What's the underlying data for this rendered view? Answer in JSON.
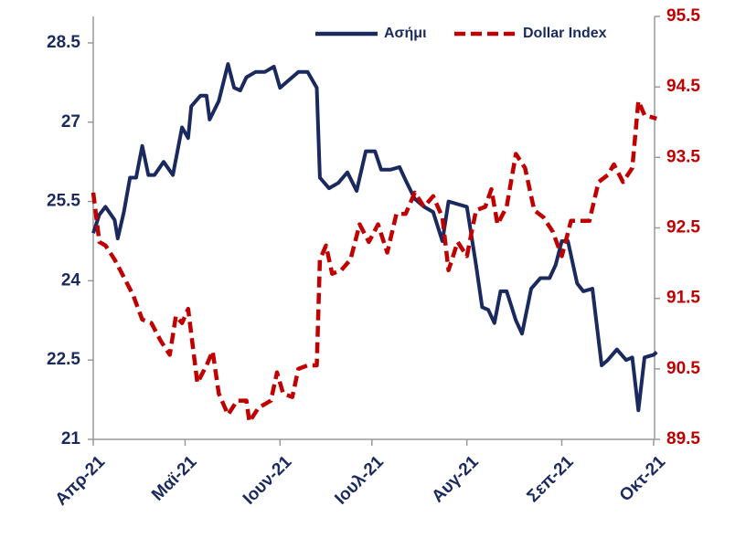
{
  "chart_data": {
    "type": "line",
    "xlim": [
      0,
      183
    ],
    "xticks": [
      {
        "value": 0,
        "label": "Απρ-21"
      },
      {
        "value": 30,
        "label": "Μαϊ-21"
      },
      {
        "value": 61,
        "label": "Ιουν-21"
      },
      {
        "value": 91,
        "label": "Ιουλ-21"
      },
      {
        "value": 122,
        "label": "Αυγ-21"
      },
      {
        "value": 153,
        "label": "Σεπ-21"
      },
      {
        "value": 183,
        "label": "Οκτ-21"
      }
    ],
    "ylim": [
      21,
      29
    ],
    "yticks": [
      21,
      22.5,
      24,
      25.5,
      27,
      28.5
    ],
    "y2lim": [
      89.5,
      95.5
    ],
    "y2ticks": [
      89.5,
      90.5,
      91.5,
      92.5,
      93.5,
      94.5,
      95.5
    ],
    "legend": "top",
    "series": [
      {
        "name": "Ασήμι",
        "color": "#1b2a5e",
        "axis": "y",
        "x": [
          0,
          2,
          4,
          7,
          8,
          10,
          12,
          14,
          16,
          18,
          20,
          23,
          26,
          29,
          31,
          32,
          35,
          37,
          38,
          41,
          44,
          46,
          48,
          50,
          53,
          56,
          59,
          61,
          64,
          67,
          70,
          73,
          74,
          77,
          80,
          83,
          86,
          89,
          92,
          94,
          97,
          100,
          102,
          105,
          108,
          111,
          114,
          116,
          119,
          122,
          125,
          127,
          129,
          131,
          133,
          135,
          138,
          140,
          143,
          146,
          149,
          151,
          153,
          155,
          158,
          160,
          163,
          166,
          168,
          171,
          174,
          176,
          178,
          180,
          183,
          184
        ],
        "values": [
          24.9,
          25.25,
          25.4,
          25.15,
          24.8,
          25.3,
          25.95,
          25.95,
          26.55,
          26.0,
          26.0,
          26.25,
          26.0,
          26.9,
          26.7,
          27.3,
          27.5,
          27.5,
          27.05,
          27.4,
          28.1,
          27.65,
          27.6,
          27.85,
          27.95,
          27.95,
          28.05,
          27.65,
          27.8,
          27.95,
          27.95,
          27.65,
          25.95,
          25.75,
          25.85,
          26.05,
          25.7,
          26.45,
          26.45,
          26.1,
          26.1,
          26.15,
          25.9,
          25.55,
          25.4,
          25.3,
          24.75,
          25.5,
          25.45,
          25.4,
          24.3,
          23.5,
          23.45,
          23.2,
          23.8,
          23.8,
          23.25,
          23.0,
          23.85,
          24.05,
          24.05,
          24.3,
          24.75,
          24.75,
          23.95,
          23.8,
          23.85,
          22.4,
          22.5,
          22.7,
          22.5,
          22.55,
          21.55,
          22.55,
          22.6,
          22.65
        ]
      },
      {
        "name": "Dollar Index",
        "color": "#c00000",
        "axis": "y2",
        "dash": true,
        "x": [
          0,
          2,
          4,
          7,
          10,
          13,
          16,
          19,
          22,
          25,
          27,
          29,
          31,
          34,
          37,
          39,
          41,
          44,
          47,
          50,
          51,
          54,
          58,
          60,
          62,
          65,
          67,
          70,
          73,
          74,
          76,
          78,
          81,
          84,
          87,
          90,
          93,
          96,
          99,
          102,
          105,
          108,
          111,
          114,
          116,
          119,
          122,
          125,
          128,
          130,
          132,
          135,
          138,
          141,
          144,
          147,
          150,
          153,
          156,
          159,
          162,
          165,
          168,
          170,
          173,
          176,
          178,
          180,
          184
        ],
        "values": [
          93.0,
          92.3,
          92.25,
          92.05,
          91.8,
          91.55,
          91.2,
          91.15,
          90.9,
          90.7,
          91.25,
          91.15,
          91.35,
          90.3,
          90.55,
          90.75,
          90.15,
          89.85,
          90.05,
          90.05,
          89.75,
          89.95,
          90.05,
          90.45,
          90.15,
          90.1,
          90.5,
          90.55,
          90.55,
          92.05,
          92.25,
          91.85,
          91.9,
          92.05,
          92.55,
          92.3,
          92.55,
          92.15,
          92.7,
          92.7,
          93.0,
          92.8,
          92.95,
          92.65,
          91.9,
          92.3,
          92.1,
          92.75,
          92.8,
          93.05,
          92.55,
          92.8,
          93.55,
          93.35,
          92.75,
          92.65,
          92.45,
          92.1,
          92.6,
          92.6,
          92.6,
          93.15,
          93.25,
          93.4,
          93.15,
          93.35,
          94.3,
          94.1,
          94.05
        ]
      }
    ]
  }
}
